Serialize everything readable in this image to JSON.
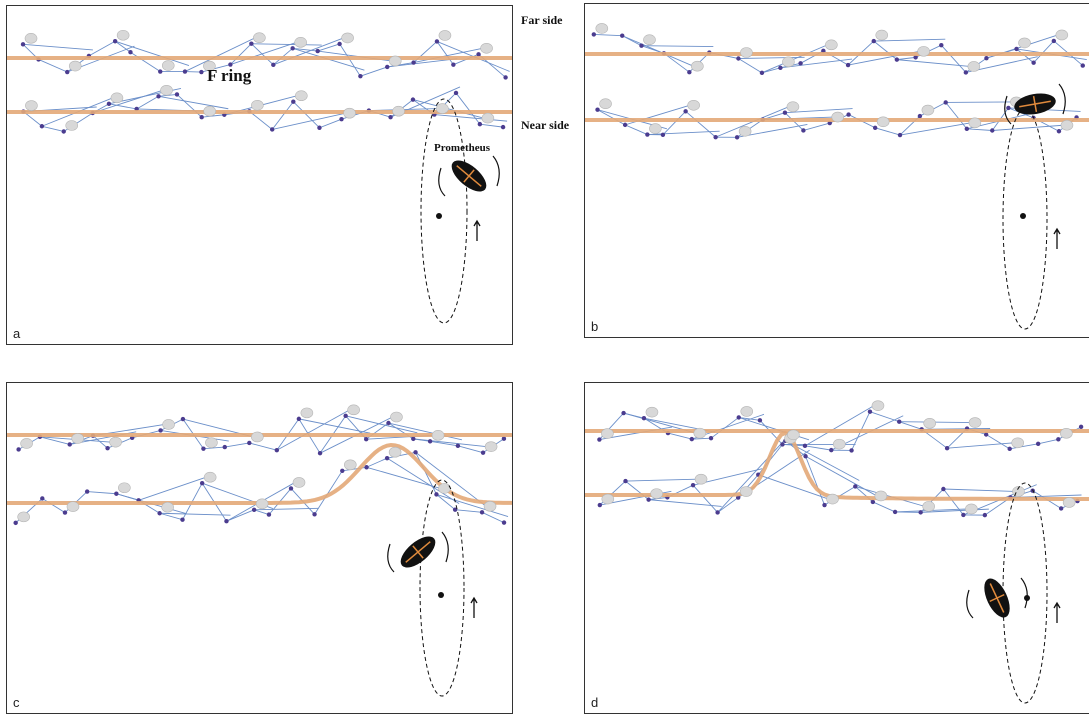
{
  "labels": {
    "far_side": "Far side",
    "near_side": "Near side",
    "ring": "F ring",
    "moon": "Prometheus"
  },
  "panels": [
    {
      "id": "a",
      "letter": "a"
    },
    {
      "id": "b",
      "letter": "b"
    },
    {
      "id": "c",
      "letter": "c"
    },
    {
      "id": "d",
      "letter": "d"
    }
  ],
  "colors": {
    "ring_strand": "#e3a978",
    "particle_links": "#6b8fc9",
    "particle_nodes": "#4b3c8f",
    "ring_particles": "#d8d8d8",
    "moon": "#111111",
    "moon_cross": "#e08a3c"
  },
  "icons": [
    "ring-particle-icon",
    "orbit-direction-arrow-icon",
    "moon-spin-arrow-icon",
    "saturn-center-dot-icon"
  ]
}
